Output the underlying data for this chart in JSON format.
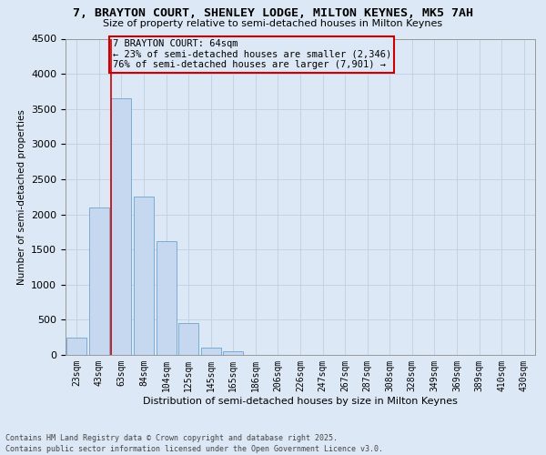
{
  "title_line1": "7, BRAYTON COURT, SHENLEY LODGE, MILTON KEYNES, MK5 7AH",
  "title_line2": "Size of property relative to semi-detached houses in Milton Keynes",
  "xlabel": "Distribution of semi-detached houses by size in Milton Keynes",
  "ylabel": "Number of semi-detached properties",
  "categories": [
    "23sqm",
    "43sqm",
    "63sqm",
    "84sqm",
    "104sqm",
    "125sqm",
    "145sqm",
    "165sqm",
    "186sqm",
    "206sqm",
    "226sqm",
    "247sqm",
    "267sqm",
    "287sqm",
    "308sqm",
    "328sqm",
    "349sqm",
    "369sqm",
    "389sqm",
    "410sqm",
    "430sqm"
  ],
  "values": [
    250,
    2100,
    3650,
    2250,
    1625,
    450,
    110,
    50,
    0,
    0,
    0,
    0,
    0,
    0,
    0,
    0,
    0,
    0,
    0,
    0,
    0
  ],
  "bar_color": "#c5d8f0",
  "bar_edge_color": "#7aadd4",
  "vline_color": "#cc0000",
  "annotation_box_color": "#cc0000",
  "grid_color": "#c0d0e0",
  "background_color": "#dce8f5",
  "ylim": [
    0,
    4500
  ],
  "yticks": [
    0,
    500,
    1000,
    1500,
    2000,
    2500,
    3000,
    3500,
    4000,
    4500
  ],
  "property_bar_index": 2,
  "property_size": "64sqm",
  "property_name": "7 BRAYTON COURT",
  "pct_smaller": 23,
  "count_smaller": "2,346",
  "pct_larger": 76,
  "count_larger": "7,901",
  "footer_line1": "Contains HM Land Registry data © Crown copyright and database right 2025.",
  "footer_line2": "Contains public sector information licensed under the Open Government Licence v3.0."
}
